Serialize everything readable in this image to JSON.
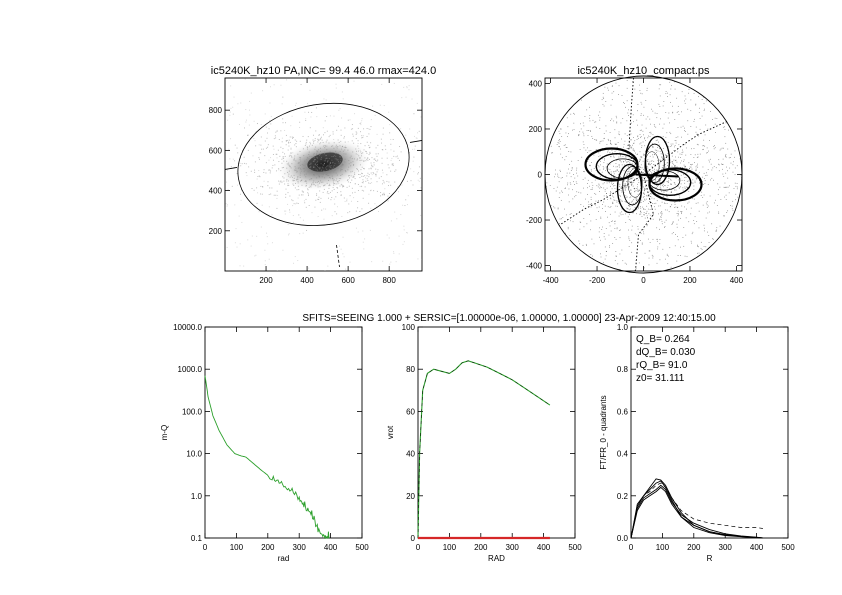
{
  "page": {
    "title": "SFITS=SEEING 1.000 + SERSIC=[1.00000e-06, 1.00000, 1.00000]  23-Apr-2009 12:40:15.00"
  },
  "chart_data": [
    {
      "type": "heatmap",
      "title": "ic5240K_hz10 PA,INC= 99.4 46.0 rmax=424.0",
      "xlabel": "",
      "ylabel": "",
      "xlim": [
        0,
        960
      ],
      "ylim": [
        0,
        960
      ],
      "x_ticks": [
        200,
        400,
        600,
        800
      ],
      "y_ticks": [
        200,
        400,
        600,
        800
      ],
      "ellipse": {
        "cx": 480,
        "cy": 530,
        "rx": 420,
        "ry": 300,
        "pa_deg": 9.4
      }
    },
    {
      "type": "scatter",
      "title": "ic5240K_hz10_compact.ps",
      "xlabel": "",
      "ylabel": "",
      "xlim": [
        -424,
        424
      ],
      "ylim": [
        -424,
        424
      ],
      "x_ticks": [
        -400,
        -200,
        0,
        200,
        400
      ],
      "y_ticks": [
        -400,
        -200,
        0,
        200,
        400
      ],
      "circle_radius": 424
    },
    {
      "type": "line",
      "title": "",
      "xlabel": "rad",
      "ylabel": "m-Q",
      "xlim": [
        0,
        500
      ],
      "ylim": [
        0.1,
        10000
      ],
      "yscale": "log",
      "x_ticks": [
        0,
        100,
        200,
        300,
        400,
        500
      ],
      "y_ticks": [
        "0.1",
        "1.0",
        "10.0",
        "100.0",
        "1000.0",
        "10000.0"
      ],
      "color": "#2ca02c",
      "x": [
        0,
        10,
        25,
        45,
        70,
        95,
        115,
        130,
        150,
        180,
        210,
        240,
        270,
        300,
        320,
        340,
        360,
        380,
        395
      ],
      "y": [
        700,
        220,
        80,
        35,
        16,
        10,
        8.8,
        8.3,
        6.2,
        4.0,
        2.7,
        2.0,
        1.4,
        0.9,
        0.55,
        0.32,
        0.18,
        0.12,
        0.1
      ]
    },
    {
      "type": "line",
      "title": "",
      "xlabel": "RAD",
      "ylabel": "vrot",
      "xlim": [
        0,
        500
      ],
      "ylim": [
        0,
        100
      ],
      "x_ticks": [
        0,
        100,
        200,
        300,
        400,
        500
      ],
      "y_ticks": [
        0,
        20,
        40,
        60,
        80,
        100
      ],
      "series": [
        {
          "color": "#2ca02c",
          "x": [
            0,
            5,
            15,
            30,
            50,
            75,
            100,
            120,
            140,
            160,
            180,
            220,
            260,
            300,
            340,
            380,
            420
          ],
          "y": [
            0,
            40,
            70,
            78,
            80,
            79,
            78,
            80,
            83,
            84,
            83,
            81,
            78,
            75,
            71,
            67,
            63
          ]
        },
        {
          "color": "#d62728",
          "x": [
            0,
            100,
            200,
            300,
            420
          ],
          "y": [
            0,
            0,
            0,
            0,
            0
          ]
        }
      ]
    },
    {
      "type": "line",
      "title": "",
      "xlabel": "R",
      "ylabel": "FT/FR_0 - quadrants",
      "xlim": [
        0,
        500
      ],
      "ylim": [
        0,
        1.0
      ],
      "x_ticks": [
        0,
        100,
        200,
        300,
        400,
        500
      ],
      "y_ticks": [
        "0.0",
        "0.2",
        "0.4",
        "0.6",
        "0.8",
        "1.0"
      ],
      "annotations": [
        "Q_B=  0.264",
        "dQ_B=  0.030",
        "rQ_B=  91.0",
        "z0= 31.111"
      ],
      "series": [
        {
          "style": "solid",
          "x": [
            0,
            20,
            40,
            60,
            80,
            95,
            110,
            130,
            160,
            200,
            250,
            300,
            350,
            400,
            420
          ],
          "y": [
            0,
            0.15,
            0.2,
            0.23,
            0.26,
            0.27,
            0.24,
            0.18,
            0.1,
            0.05,
            0.025,
            0.012,
            0.006,
            0.002,
            0
          ]
        },
        {
          "style": "solid",
          "x": [
            0,
            20,
            40,
            60,
            80,
            95,
            110,
            130,
            160,
            200,
            250,
            300,
            350,
            400,
            420
          ],
          "y": [
            0,
            0.14,
            0.19,
            0.21,
            0.23,
            0.25,
            0.23,
            0.17,
            0.11,
            0.07,
            0.04,
            0.02,
            0.01,
            0.004,
            0
          ]
        },
        {
          "style": "solid",
          "x": [
            0,
            20,
            40,
            60,
            80,
            95,
            110,
            130,
            160,
            200,
            250,
            300,
            350,
            400,
            420
          ],
          "y": [
            0,
            0.16,
            0.2,
            0.24,
            0.28,
            0.275,
            0.25,
            0.19,
            0.12,
            0.06,
            0.03,
            0.015,
            0.007,
            0.003,
            0
          ]
        },
        {
          "style": "solid",
          "x": [
            0,
            20,
            40,
            60,
            80,
            95,
            110,
            130,
            160,
            200,
            250,
            300,
            350,
            400,
            420
          ],
          "y": [
            0,
            0.13,
            0.18,
            0.2,
            0.22,
            0.24,
            0.22,
            0.16,
            0.1,
            0.06,
            0.03,
            0.015,
            0.008,
            0.003,
            0
          ]
        },
        {
          "style": "dashed",
          "x": [
            0,
            20,
            40,
            60,
            80,
            95,
            110,
            130,
            160,
            200,
            250,
            300,
            350,
            400,
            420
          ],
          "y": [
            0,
            0.15,
            0.2,
            0.22,
            0.25,
            0.26,
            0.24,
            0.19,
            0.13,
            0.09,
            0.07,
            0.06,
            0.05,
            0.05,
            0.045
          ]
        }
      ]
    }
  ]
}
